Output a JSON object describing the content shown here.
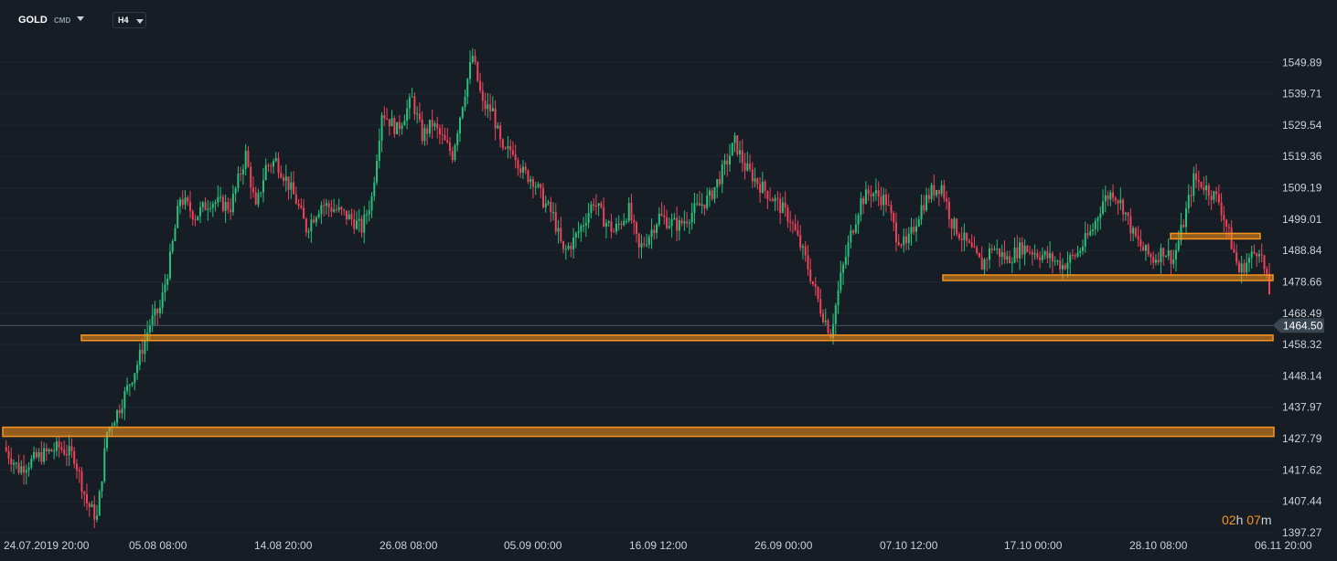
{
  "header": {
    "symbol": "GOLD",
    "market": "CMD",
    "timeframe": "H4"
  },
  "timer": {
    "hours": "02",
    "h_unit": "h",
    "minutes": "07",
    "m_unit": "m"
  },
  "colors": {
    "background": "#161d25",
    "up": "#27c27c",
    "down": "#f0435a",
    "level": "#f7931e",
    "axis_text": "#c9d1d9"
  },
  "chart_data": {
    "type": "candlestick",
    "title": "",
    "xlabel": "",
    "ylabel": "",
    "ylim": [
      1393.0,
      1570.0
    ],
    "y_ticks": [
      "1549.89",
      "1539.71",
      "1529.54",
      "1519.36",
      "1509.19",
      "1499.01",
      "1488.84",
      "1478.66",
      "1468.49",
      "1458.32",
      "1448.14",
      "1437.97",
      "1427.79",
      "1417.62",
      "1407.44",
      "1397.27"
    ],
    "x_ticks": [
      "24.07.2019  20:00",
      "05.08  08:00",
      "14.08  20:00",
      "26.08  08:00",
      "05.09  00:00",
      "16.09  12:00",
      "26.09  00:00",
      "07.10  12:00",
      "17.10  00:00",
      "28.10  08:00",
      "06.11  20:00"
    ],
    "last_price": "1464.50",
    "close_path": [
      [
        0,
        1425
      ],
      [
        6,
        1418
      ],
      [
        14,
        1422
      ],
      [
        22,
        1425
      ],
      [
        28,
        1422
      ],
      [
        33,
        1407
      ],
      [
        37,
        1402
      ],
      [
        41,
        1430
      ],
      [
        46,
        1438
      ],
      [
        53,
        1452
      ],
      [
        58,
        1465
      ],
      [
        62,
        1470
      ],
      [
        66,
        1486
      ],
      [
        70,
        1506
      ],
      [
        76,
        1500
      ],
      [
        82,
        1505
      ],
      [
        90,
        1503
      ],
      [
        96,
        1520
      ],
      [
        100,
        1502
      ],
      [
        104,
        1516
      ],
      [
        108,
        1518
      ],
      [
        112,
        1512
      ],
      [
        116,
        1505
      ],
      [
        120,
        1496
      ],
      [
        126,
        1504
      ],
      [
        132,
        1502
      ],
      [
        138,
        1499
      ],
      [
        142,
        1496
      ],
      [
        146,
        1506
      ],
      [
        150,
        1534
      ],
      [
        156,
        1528
      ],
      [
        162,
        1538
      ],
      [
        166,
        1526
      ],
      [
        170,
        1530
      ],
      [
        174,
        1525
      ],
      [
        178,
        1520
      ],
      [
        182,
        1537
      ],
      [
        186,
        1552
      ],
      [
        190,
        1536
      ],
      [
        194,
        1534
      ],
      [
        198,
        1520
      ],
      [
        202,
        1522
      ],
      [
        206,
        1514
      ],
      [
        210,
        1512
      ],
      [
        214,
        1505
      ],
      [
        218,
        1500
      ],
      [
        222,
        1488
      ],
      [
        226,
        1492
      ],
      [
        230,
        1498
      ],
      [
        234,
        1505
      ],
      [
        238,
        1499
      ],
      [
        242,
        1495
      ],
      [
        248,
        1502
      ],
      [
        252,
        1489
      ],
      [
        256,
        1494
      ],
      [
        260,
        1500
      ],
      [
        264,
        1498
      ],
      [
        268,
        1497
      ],
      [
        274,
        1502
      ],
      [
        280,
        1506
      ],
      [
        286,
        1516
      ],
      [
        290,
        1524
      ],
      [
        294,
        1516
      ],
      [
        300,
        1510
      ],
      [
        306,
        1505
      ],
      [
        312,
        1499
      ],
      [
        318,
        1486
      ],
      [
        324,
        1470
      ],
      [
        328,
        1462
      ],
      [
        332,
        1480
      ],
      [
        336,
        1494
      ],
      [
        340,
        1505
      ],
      [
        344,
        1508
      ],
      [
        350,
        1505
      ],
      [
        354,
        1494
      ],
      [
        358,
        1490
      ],
      [
        364,
        1503
      ],
      [
        368,
        1508
      ],
      [
        372,
        1510
      ],
      [
        376,
        1498
      ],
      [
        382,
        1491
      ],
      [
        388,
        1484
      ],
      [
        392,
        1490
      ],
      [
        398,
        1486
      ],
      [
        404,
        1490
      ],
      [
        410,
        1488
      ],
      [
        416,
        1486
      ],
      [
        420,
        1484
      ],
      [
        426,
        1488
      ],
      [
        432,
        1496
      ],
      [
        436,
        1505
      ],
      [
        440,
        1508
      ],
      [
        444,
        1503
      ],
      [
        448,
        1494
      ],
      [
        452,
        1489
      ],
      [
        456,
        1486
      ],
      [
        460,
        1489
      ],
      [
        464,
        1486
      ],
      [
        468,
        1498
      ],
      [
        472,
        1512
      ],
      [
        476,
        1510
      ],
      [
        482,
        1505
      ],
      [
        486,
        1494
      ],
      [
        490,
        1482
      ],
      [
        494,
        1486
      ],
      [
        498,
        1490
      ],
      [
        502,
        1475
      ]
    ],
    "levels": [
      1460.5,
      1480.0,
      1493.5,
      1430.0
    ]
  }
}
